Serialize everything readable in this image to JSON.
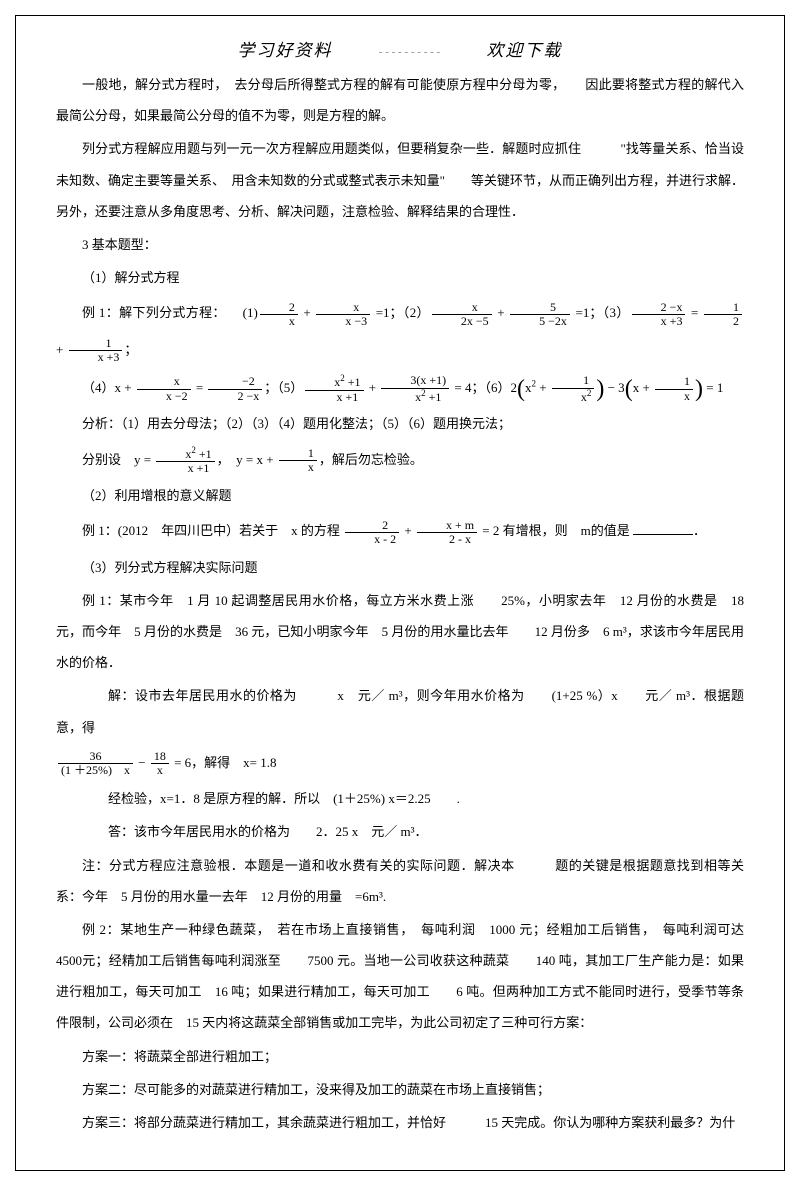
{
  "header": {
    "left": "学习好资料",
    "right": "欢迎下载"
  },
  "paragraphs": {
    "p1": "一般地，解分式方程时，　去分母后所得整式方程的解有可能使原方程中分母为零，　　因此要将整式方程的解代入最简公分母，如果最简公分母的值不为零，则是方程的解。",
    "p2": "列分式方程解应用题与列一元一次方程解应用题类似，但要稍复杂一些．解题时应抓住　　　\"找等量关系、恰当设未知数、确定主要等量关系、　用含未知数的分式或整式表示未知量\"　　等关键环节，从而正确列出方程，并进行求解．另外，还要注意从多角度思考、分析、解决问题，注意检验、解释结果的合理性．",
    "p3": "3 基本题型：",
    "p4": "（1）解分式方程",
    "ex1_label": "例 1：解下列分式方程：",
    "p5": "分析：（1）用去分母法；（2）（3）（4）题用化整法；（5）（6）题用换元法；",
    "p6_a": "分别设",
    "p6_b": "，解后勿忘检验。",
    "p7": "（2）利用增根的意义解题",
    "ex2_a": "例 1：(2012　年四川巴中）若关于　x 的方程",
    "ex2_b": "= 2 有增根，则　m的值是",
    "p8": "（3）列分式方程解决实际问题",
    "ex3": "例 1：某市今年　1 月 10 起调整居民用水价格，每立方米水费上涨　　25%，小明家去年　12 月份的水费是　18 元，而今年　5 月份的水费是　36 元，已知小明家今年　5 月份的用水量比去年　　12 月份多　6 m³，求该市今年居民用水的价格．",
    "sol1_a": "解：设市去年居民用水的价格为　　　x　元／ m³，则今年用水价格为　　(1+25 %）x　　元／ m³．根据题意，得",
    "sol1_b": "= 6，解得　x= 1.8",
    "sol2": "经检验，x=1．8 是原方程的解．所以　(1＋25%) x＝2.25　　.",
    "sol3": "答：该市今年居民用水的价格为　　2．25 x　元／ m³．",
    "note_a": "注：分式方程应注意验根．本题是一道和收水费有关的实际问题．解决本　　　题的关键是根据题意找到相等关系：今年　5 月份的用水量一去年　12 月份的用量　=6m³.",
    "ex4": "例 2：某地生产一种绿色蔬菜，　若在市场上直接销售，　每吨利润　1000 元；经粗加工后销售，　每吨利润可达　4500元；经精加工后销售每吨利润涨至　　7500 元。当地一公司收获这种蔬菜　　140 吨，其加工厂生产能力是：如果进行粗加工，每天可加工　16 吨；如果进行精加工，每天可加工　　6 吨。但两种加工方式不能同时进行，受季节等条件限制，公司必须在　15 天内将这蔬菜全部销售或加工完毕，为此公司初定了三种可行方案：",
    "plan1": "方案一：将蔬菜全部进行粗加工；",
    "plan2": "方案二：尽可能多的对蔬菜进行精加工，没来得及加工的蔬菜在市场上直接销售；",
    "plan3": "方案三：将部分蔬菜进行精加工，其余蔬菜进行粗加工，并恰好　　　15 天完成。你认为哪种方案获利最多？为什"
  }
}
